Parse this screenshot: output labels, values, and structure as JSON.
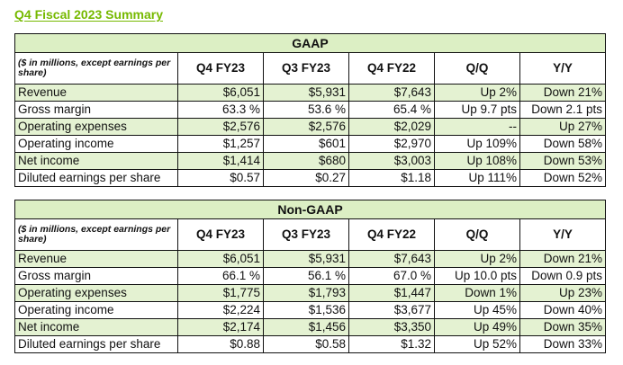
{
  "title": "Q4 Fiscal 2023 Summary",
  "colors": {
    "title": "#76b900",
    "header_fill": "#dcefc4",
    "row_shade": "#e4f2d2",
    "border": "#111111"
  },
  "gaap": {
    "section_title": "GAAP",
    "note": "($ in millions, except earnings per share)",
    "columns": [
      "Q4 FY23",
      "Q3 FY23",
      "Q4 FY22",
      "Q/Q",
      "Y/Y"
    ],
    "rows": [
      {
        "label": "Revenue",
        "values": [
          "$6,051",
          "$5,931",
          "$7,643",
          "Up 2%",
          "Down 21%"
        ]
      },
      {
        "label": "Gross margin",
        "values": [
          "63.3 %",
          "53.6 %",
          "65.4 %",
          "Up 9.7 pts",
          "Down 2.1 pts"
        ]
      },
      {
        "label": "Operating expenses",
        "values": [
          "$2,576",
          "$2,576",
          "$2,029",
          "--",
          "Up 27%"
        ]
      },
      {
        "label": "Operating income",
        "values": [
          "$1,257",
          "$601",
          "$2,970",
          "Up 109%",
          "Down 58%"
        ]
      },
      {
        "label": "Net income",
        "values": [
          "$1,414",
          "$680",
          "$3,003",
          "Up 108%",
          "Down 53%"
        ]
      },
      {
        "label": "Diluted earnings per share",
        "values": [
          "$0.57",
          "$0.27",
          "$1.18",
          "Up 111%",
          "Down 52%"
        ]
      }
    ]
  },
  "non_gaap": {
    "section_title": "Non-GAAP",
    "note": "($ in millions, except earnings per share)",
    "columns": [
      "Q4 FY23",
      "Q3 FY23",
      "Q4 FY22",
      "Q/Q",
      "Y/Y"
    ],
    "rows": [
      {
        "label": "Revenue",
        "values": [
          "$6,051",
          "$5,931",
          "$7,643",
          "Up 2%",
          "Down 21%"
        ]
      },
      {
        "label": "Gross margin",
        "values": [
          "66.1 %",
          "56.1 %",
          "67.0 %",
          "Up 10.0 pts",
          "Down 0.9 pts"
        ]
      },
      {
        "label": "Operating expenses",
        "values": [
          "$1,775",
          "$1,793",
          "$1,447",
          "Down 1%",
          "Up 23%"
        ]
      },
      {
        "label": "Operating income",
        "values": [
          "$2,224",
          "$1,536",
          "$3,677",
          "Up 45%",
          "Down 40%"
        ]
      },
      {
        "label": "Net income",
        "values": [
          "$2,174",
          "$1,456",
          "$3,350",
          "Up 49%",
          "Down 35%"
        ]
      },
      {
        "label": "Diluted earnings per share",
        "values": [
          "$0.88",
          "$0.58",
          "$1.32",
          "Up 52%",
          "Down 33%"
        ]
      }
    ]
  }
}
